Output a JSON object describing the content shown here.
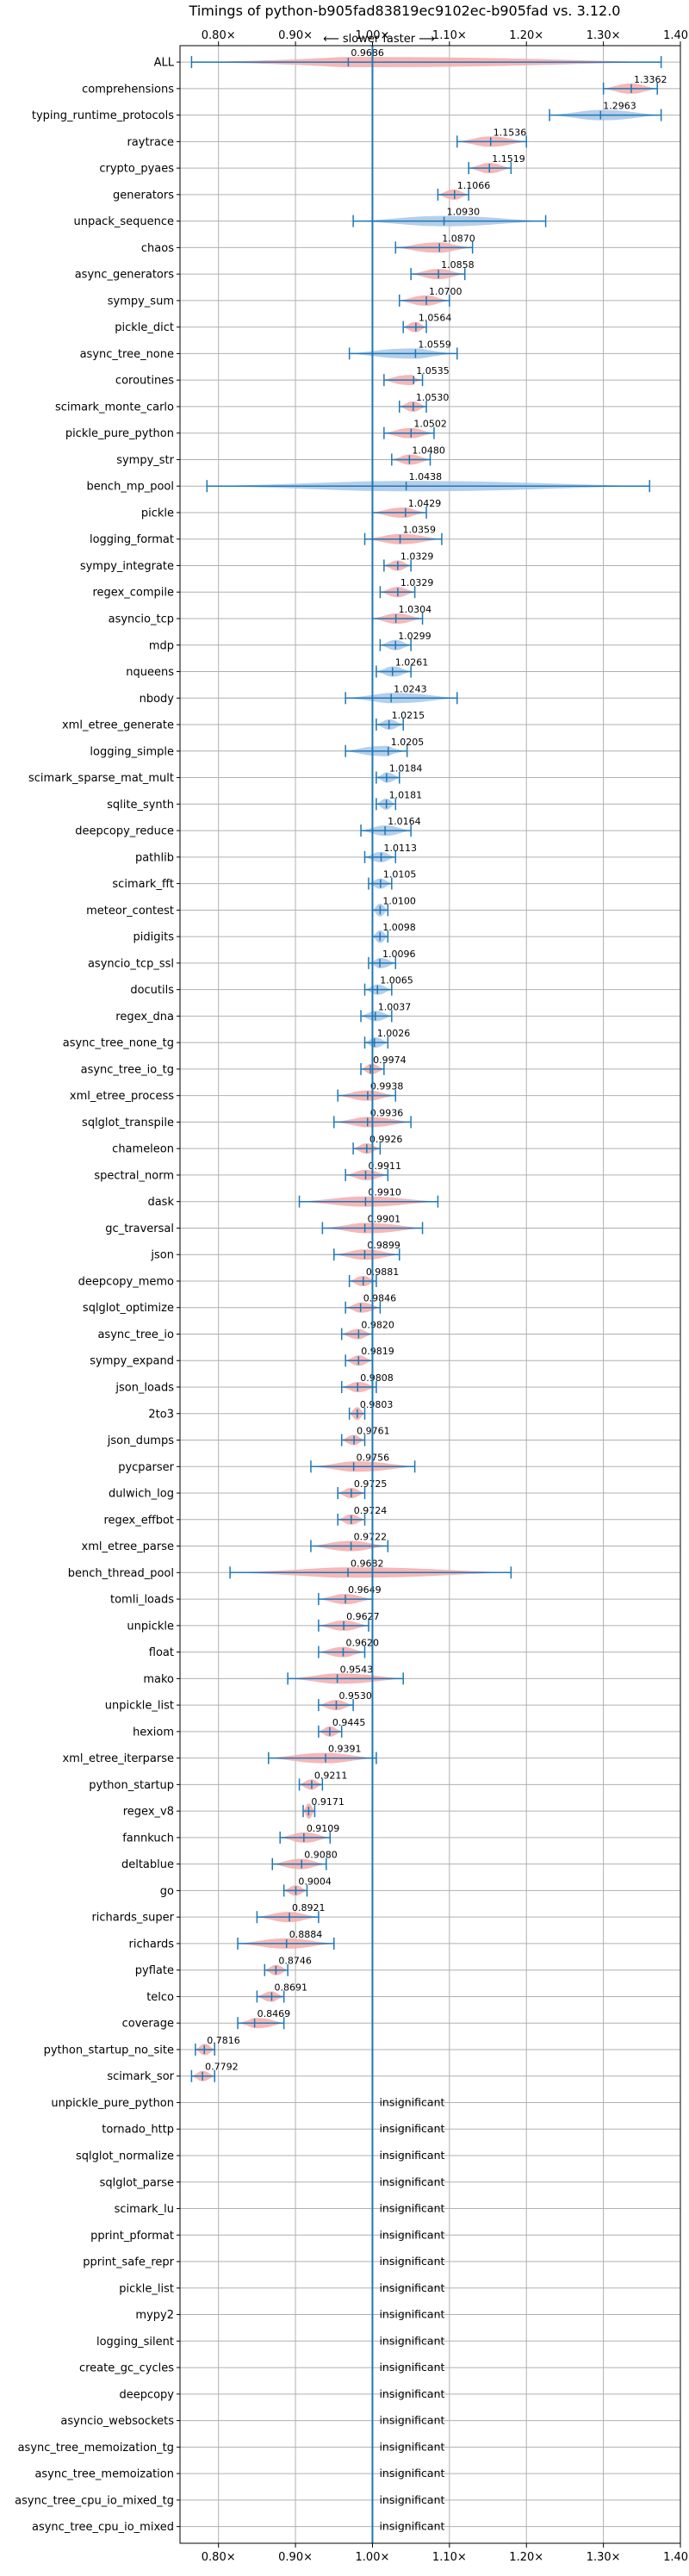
{
  "chart_data": {
    "type": "violin",
    "title": "Timings of python-b905fad83819ec9102ec-b905fad vs. 3.12.0",
    "direction_label": "⟵ slower    faster ⟶",
    "insignificant_label": "insignificant",
    "xlim": [
      0.75,
      1.4
    ],
    "x_ticks": [
      0.8,
      0.9,
      1.0,
      1.1,
      1.2,
      1.3,
      1.4
    ],
    "x_tick_labels": [
      "0.80×",
      "0.90×",
      "1.00×",
      "1.10×",
      "1.20×",
      "1.30×",
      "1.40×"
    ],
    "grid": true,
    "colors": {
      "faster": "#a7c7e7",
      "slower": "#f4aaaa",
      "line": "#1f77b4"
    },
    "benchmarks": [
      {
        "name": "ALL",
        "mean": 0.9686,
        "min": 0.765,
        "max": 1.375,
        "label": "0.9686"
      },
      {
        "name": "comprehensions",
        "mean": 1.3362,
        "min": 1.3,
        "max": 1.37,
        "label": "1.3362"
      },
      {
        "name": "typing_runtime_protocols",
        "mean": 1.2963,
        "min": 1.23,
        "max": 1.375,
        "label": "1.2963"
      },
      {
        "name": "raytrace",
        "mean": 1.1536,
        "min": 1.11,
        "max": 1.2,
        "label": "1.1536"
      },
      {
        "name": "crypto_pyaes",
        "mean": 1.1519,
        "min": 1.125,
        "max": 1.18,
        "label": "1.1519"
      },
      {
        "name": "generators",
        "mean": 1.1066,
        "min": 1.085,
        "max": 1.125,
        "label": "1.1066"
      },
      {
        "name": "unpack_sequence",
        "mean": 1.093,
        "min": 0.975,
        "max": 1.225,
        "label": "1.0930"
      },
      {
        "name": "chaos",
        "mean": 1.087,
        "min": 1.03,
        "max": 1.13,
        "label": "1.0870"
      },
      {
        "name": "async_generators",
        "mean": 1.0858,
        "min": 1.05,
        "max": 1.12,
        "label": "1.0858"
      },
      {
        "name": "sympy_sum",
        "mean": 1.07,
        "min": 1.035,
        "max": 1.1,
        "label": "1.0700"
      },
      {
        "name": "pickle_dict",
        "mean": 1.0564,
        "min": 1.04,
        "max": 1.07,
        "label": "1.0564"
      },
      {
        "name": "async_tree_none",
        "mean": 1.0559,
        "min": 0.97,
        "max": 1.11,
        "label": "1.0559"
      },
      {
        "name": "coroutines",
        "mean": 1.0535,
        "min": 1.015,
        "max": 1.065,
        "label": "1.0535"
      },
      {
        "name": "scimark_monte_carlo",
        "mean": 1.053,
        "min": 1.035,
        "max": 1.07,
        "label": "1.0530"
      },
      {
        "name": "pickle_pure_python",
        "mean": 1.0502,
        "min": 1.015,
        "max": 1.08,
        "label": "1.0502"
      },
      {
        "name": "sympy_str",
        "mean": 1.048,
        "min": 1.025,
        "max": 1.075,
        "label": "1.0480"
      },
      {
        "name": "bench_mp_pool",
        "mean": 1.0438,
        "min": 0.785,
        "max": 1.36,
        "label": "1.0438"
      },
      {
        "name": "pickle",
        "mean": 1.0429,
        "min": 1.0,
        "max": 1.07,
        "label": "1.0429"
      },
      {
        "name": "logging_format",
        "mean": 1.0359,
        "min": 0.99,
        "max": 1.09,
        "label": "1.0359"
      },
      {
        "name": "sympy_integrate",
        "mean": 1.0329,
        "min": 1.015,
        "max": 1.05,
        "label": "1.0329"
      },
      {
        "name": "regex_compile",
        "mean": 1.0329,
        "min": 1.01,
        "max": 1.055,
        "label": "1.0329"
      },
      {
        "name": "asyncio_tcp",
        "mean": 1.0304,
        "min": 1.0,
        "max": 1.065,
        "label": "1.0304"
      },
      {
        "name": "mdp",
        "mean": 1.0299,
        "min": 1.01,
        "max": 1.05,
        "label": "1.0299"
      },
      {
        "name": "nqueens",
        "mean": 1.0261,
        "min": 1.005,
        "max": 1.05,
        "label": "1.0261"
      },
      {
        "name": "nbody",
        "mean": 1.0243,
        "min": 0.965,
        "max": 1.11,
        "label": "1.0243"
      },
      {
        "name": "xml_etree_generate",
        "mean": 1.0215,
        "min": 1.005,
        "max": 1.04,
        "label": "1.0215"
      },
      {
        "name": "logging_simple",
        "mean": 1.0205,
        "min": 0.965,
        "max": 1.045,
        "label": "1.0205"
      },
      {
        "name": "scimark_sparse_mat_mult",
        "mean": 1.0184,
        "min": 1.005,
        "max": 1.035,
        "label": "1.0184"
      },
      {
        "name": "sqlite_synth",
        "mean": 1.0181,
        "min": 1.005,
        "max": 1.03,
        "label": "1.0181"
      },
      {
        "name": "deepcopy_reduce",
        "mean": 1.0164,
        "min": 0.985,
        "max": 1.05,
        "label": "1.0164"
      },
      {
        "name": "pathlib",
        "mean": 1.0113,
        "min": 0.99,
        "max": 1.03,
        "label": "1.0113"
      },
      {
        "name": "scimark_fft",
        "mean": 1.0105,
        "min": 0.995,
        "max": 1.025,
        "label": "1.0105"
      },
      {
        "name": "meteor_contest",
        "mean": 1.01,
        "min": 1.0,
        "max": 1.02,
        "label": "1.0100"
      },
      {
        "name": "pidigits",
        "mean": 1.0098,
        "min": 1.0,
        "max": 1.02,
        "label": "1.0098"
      },
      {
        "name": "asyncio_tcp_ssl",
        "mean": 1.0096,
        "min": 0.995,
        "max": 1.03,
        "label": "1.0096"
      },
      {
        "name": "docutils",
        "mean": 1.0065,
        "min": 0.99,
        "max": 1.025,
        "label": "1.0065"
      },
      {
        "name": "regex_dna",
        "mean": 1.0037,
        "min": 0.985,
        "max": 1.025,
        "label": "1.0037"
      },
      {
        "name": "async_tree_none_tg",
        "mean": 1.0026,
        "min": 0.99,
        "max": 1.02,
        "label": "1.0026"
      },
      {
        "name": "async_tree_io_tg",
        "mean": 0.9974,
        "min": 0.985,
        "max": 1.015,
        "label": "0.9974"
      },
      {
        "name": "xml_etree_process",
        "mean": 0.9938,
        "min": 0.955,
        "max": 1.03,
        "label": "0.9938"
      },
      {
        "name": "sqlglot_transpile",
        "mean": 0.9936,
        "min": 0.95,
        "max": 1.05,
        "label": "0.9936"
      },
      {
        "name": "chameleon",
        "mean": 0.9926,
        "min": 0.975,
        "max": 1.01,
        "label": "0.9926"
      },
      {
        "name": "spectral_norm",
        "mean": 0.9911,
        "min": 0.965,
        "max": 1.02,
        "label": "0.9911"
      },
      {
        "name": "dask",
        "mean": 0.991,
        "min": 0.905,
        "max": 1.085,
        "label": "0.9910"
      },
      {
        "name": "gc_traversal",
        "mean": 0.9901,
        "min": 0.935,
        "max": 1.065,
        "label": "0.9901"
      },
      {
        "name": "json",
        "mean": 0.9899,
        "min": 0.95,
        "max": 1.035,
        "label": "0.9899"
      },
      {
        "name": "deepcopy_memo",
        "mean": 0.9881,
        "min": 0.97,
        "max": 1.005,
        "label": "0.9881"
      },
      {
        "name": "sqlglot_optimize",
        "mean": 0.9846,
        "min": 0.965,
        "max": 1.01,
        "label": "0.9846"
      },
      {
        "name": "async_tree_io",
        "mean": 0.982,
        "min": 0.96,
        "max": 1.0,
        "label": "0.9820"
      },
      {
        "name": "sympy_expand",
        "mean": 0.9819,
        "min": 0.965,
        "max": 1.0,
        "label": "0.9819"
      },
      {
        "name": "json_loads",
        "mean": 0.9808,
        "min": 0.96,
        "max": 1.005,
        "label": "0.9808"
      },
      {
        "name": "2to3",
        "mean": 0.9803,
        "min": 0.97,
        "max": 0.99,
        "label": "0.9803"
      },
      {
        "name": "json_dumps",
        "mean": 0.9761,
        "min": 0.96,
        "max": 0.99,
        "label": "0.9761"
      },
      {
        "name": "pycparser",
        "mean": 0.9756,
        "min": 0.92,
        "max": 1.055,
        "label": "0.9756"
      },
      {
        "name": "dulwich_log",
        "mean": 0.9725,
        "min": 0.955,
        "max": 0.99,
        "label": "0.9725"
      },
      {
        "name": "regex_effbot",
        "mean": 0.9724,
        "min": 0.955,
        "max": 0.99,
        "label": "0.9724"
      },
      {
        "name": "xml_etree_parse",
        "mean": 0.9722,
        "min": 0.92,
        "max": 1.02,
        "label": "0.9722"
      },
      {
        "name": "bench_thread_pool",
        "mean": 0.9682,
        "min": 0.815,
        "max": 1.18,
        "label": "0.9682"
      },
      {
        "name": "tomli_loads",
        "mean": 0.9649,
        "min": 0.93,
        "max": 1.0,
        "label": "0.9649"
      },
      {
        "name": "unpickle",
        "mean": 0.9627,
        "min": 0.93,
        "max": 0.995,
        "label": "0.9627"
      },
      {
        "name": "float",
        "mean": 0.962,
        "min": 0.93,
        "max": 0.99,
        "label": "0.9620"
      },
      {
        "name": "mako",
        "mean": 0.9543,
        "min": 0.89,
        "max": 1.04,
        "label": "0.9543"
      },
      {
        "name": "unpickle_list",
        "mean": 0.953,
        "min": 0.93,
        "max": 0.975,
        "label": "0.9530"
      },
      {
        "name": "hexiom",
        "mean": 0.9445,
        "min": 0.93,
        "max": 0.96,
        "label": "0.9445"
      },
      {
        "name": "xml_etree_iterparse",
        "mean": 0.9391,
        "min": 0.865,
        "max": 1.005,
        "label": "0.9391"
      },
      {
        "name": "python_startup",
        "mean": 0.9211,
        "min": 0.905,
        "max": 0.935,
        "label": "0.9211"
      },
      {
        "name": "regex_v8",
        "mean": 0.9171,
        "min": 0.91,
        "max": 0.925,
        "label": "0.9171"
      },
      {
        "name": "fannkuch",
        "mean": 0.9109,
        "min": 0.88,
        "max": 0.945,
        "label": "0.9109"
      },
      {
        "name": "deltablue",
        "mean": 0.908,
        "min": 0.87,
        "max": 0.94,
        "label": "0.9080"
      },
      {
        "name": "go",
        "mean": 0.9004,
        "min": 0.885,
        "max": 0.915,
        "label": "0.9004"
      },
      {
        "name": "richards_super",
        "mean": 0.8921,
        "min": 0.85,
        "max": 0.93,
        "label": "0.8921"
      },
      {
        "name": "richards",
        "mean": 0.8884,
        "min": 0.825,
        "max": 0.95,
        "label": "0.8884"
      },
      {
        "name": "pyflate",
        "mean": 0.8746,
        "min": 0.86,
        "max": 0.89,
        "label": "0.8746"
      },
      {
        "name": "telco",
        "mean": 0.8691,
        "min": 0.85,
        "max": 0.885,
        "label": "0.8691"
      },
      {
        "name": "coverage",
        "mean": 0.8469,
        "min": 0.825,
        "max": 0.885,
        "label": "0.8469"
      },
      {
        "name": "python_startup_no_site",
        "mean": 0.7816,
        "min": 0.77,
        "max": 0.795,
        "label": "0.7816"
      },
      {
        "name": "scimark_sor",
        "mean": 0.7792,
        "min": 0.765,
        "max": 0.795,
        "label": "0.7792"
      },
      {
        "name": "unpickle_pure_python",
        "insignificant": true
      },
      {
        "name": "tornado_http",
        "insignificant": true
      },
      {
        "name": "sqlglot_normalize",
        "insignificant": true
      },
      {
        "name": "sqlglot_parse",
        "insignificant": true
      },
      {
        "name": "scimark_lu",
        "insignificant": true
      },
      {
        "name": "pprint_pformat",
        "insignificant": true
      },
      {
        "name": "pprint_safe_repr",
        "insignificant": true
      },
      {
        "name": "pickle_list",
        "insignificant": true
      },
      {
        "name": "mypy2",
        "insignificant": true
      },
      {
        "name": "logging_silent",
        "insignificant": true
      },
      {
        "name": "create_gc_cycles",
        "insignificant": true
      },
      {
        "name": "deepcopy",
        "insignificant": true
      },
      {
        "name": "asyncio_websockets",
        "insignificant": true
      },
      {
        "name": "async_tree_memoization_tg",
        "insignificant": true
      },
      {
        "name": "async_tree_memoization",
        "insignificant": true
      },
      {
        "name": "async_tree_cpu_io_mixed_tg",
        "insignificant": true
      },
      {
        "name": "async_tree_cpu_io_mixed",
        "insignificant": true
      }
    ]
  }
}
